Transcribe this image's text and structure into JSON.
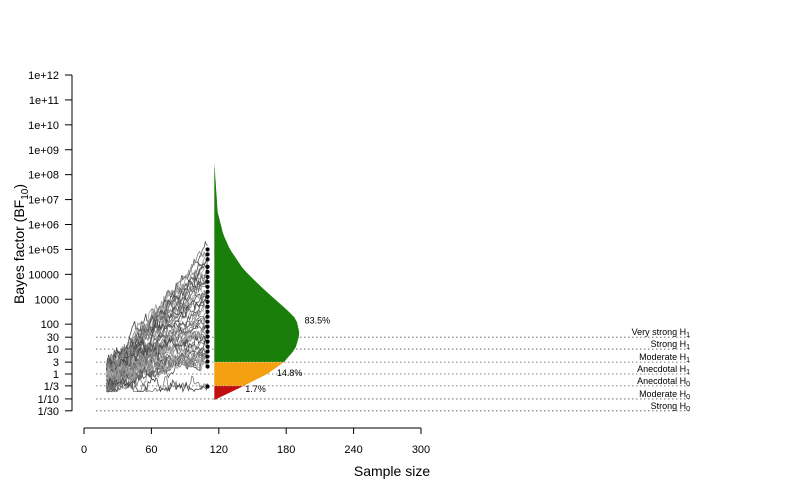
{
  "chart_data": {
    "type": "line",
    "title": "",
    "xlabel": "Sample size",
    "ylabel_main": "Bayes factor (BF",
    "ylabel_sub": "10",
    "ylabel_end": ")",
    "xlim": [
      0,
      300
    ],
    "x_ticks": [
      {
        "value": 0,
        "label": "0"
      },
      {
        "value": 60,
        "label": "60"
      },
      {
        "value": 120,
        "label": "120"
      },
      {
        "value": 180,
        "label": "180"
      },
      {
        "value": 240,
        "label": "240"
      },
      {
        "value": 300,
        "label": "300"
      }
    ],
    "y_ticks": [
      {
        "log10": 12,
        "label": "1e+12"
      },
      {
        "log10": 11,
        "label": "1e+11"
      },
      {
        "log10": 10,
        "label": "1e+10"
      },
      {
        "log10": 9,
        "label": "1e+09"
      },
      {
        "log10": 8,
        "label": "1e+08"
      },
      {
        "log10": 7,
        "label": "1e+07"
      },
      {
        "log10": 6,
        "label": "1e+06"
      },
      {
        "log10": 5,
        "label": "1e+05"
      },
      {
        "log10": 4,
        "label": "10000"
      },
      {
        "log10": 3,
        "label": "1000"
      },
      {
        "log10": 2,
        "label": "100"
      },
      {
        "log10": 1.4771,
        "label": "30"
      },
      {
        "log10": 1,
        "label": "10"
      },
      {
        "log10": 0.4771,
        "label": "3"
      },
      {
        "log10": 0,
        "label": "1"
      },
      {
        "log10": -0.4771,
        "label": "1/3"
      },
      {
        "log10": -1,
        "label": "1/10"
      },
      {
        "log10": -1.4771,
        "label": "1/30"
      }
    ],
    "evidence_lines": [
      {
        "log10": 1.4771,
        "label": "Very strong H",
        "sub": "1"
      },
      {
        "log10": 1,
        "label": "Strong H",
        "sub": "1"
      },
      {
        "log10": 0.4771,
        "label": "Moderate H",
        "sub": "1"
      },
      {
        "log10": 0,
        "label": "Anecdotal H",
        "sub": "1"
      },
      {
        "log10": -0.4771,
        "label": "Anecdotal H",
        "sub": "0"
      },
      {
        "log10": -1,
        "label": "Moderate H",
        "sub": "0"
      },
      {
        "log10": -1.4771,
        "label": "Strong H",
        "sub": "0"
      }
    ],
    "trajectories": {
      "n_start": 20,
      "n_end": 110,
      "count": 50
    },
    "final_points_log10bf": [
      5.0,
      4.8,
      4.6,
      4.3,
      4.1,
      3.9,
      3.7,
      3.5,
      3.3,
      3.1,
      2.9,
      2.7,
      2.5,
      2.3,
      2.1,
      1.9,
      1.7,
      1.5,
      1.3,
      1.1,
      0.9,
      0.7,
      0.5,
      0.3,
      -0.5
    ],
    "density": {
      "x_start": 116,
      "profile": [
        {
          "log10": 8.5,
          "x": 116
        },
        {
          "log10": 6.5,
          "x": 119
        },
        {
          "log10": 5.6,
          "x": 124
        },
        {
          "log10": 5.0,
          "x": 130
        },
        {
          "log10": 4.2,
          "x": 142
        },
        {
          "log10": 3.4,
          "x": 160
        },
        {
          "log10": 2.6,
          "x": 180
        },
        {
          "log10": 2.2,
          "x": 189
        },
        {
          "log10": 1.6,
          "x": 192
        },
        {
          "log10": 1.0,
          "x": 188
        },
        {
          "log10": 0.48,
          "x": 178
        },
        {
          "log10": 0.0,
          "x": 163
        },
        {
          "log10": -0.48,
          "x": 142
        },
        {
          "log10": -1.0,
          "x": 118
        },
        {
          "log10": -1.05,
          "x": 116
        }
      ],
      "regions": [
        {
          "name": "H1",
          "from": 0.4771,
          "to": 8.5,
          "color": "#1a7e0a",
          "percent": "83.5%",
          "label_log10": 2.15
        },
        {
          "name": "anecdotal",
          "from": -0.4771,
          "to": 0.4771,
          "color": "#f4a011",
          "percent": "14.8%",
          "label_log10": 0.05
        },
        {
          "name": "H0",
          "from": -1.05,
          "to": -0.4771,
          "color": "#c00f0f",
          "percent": "1.7%",
          "label_log10": -0.6
        }
      ]
    }
  }
}
